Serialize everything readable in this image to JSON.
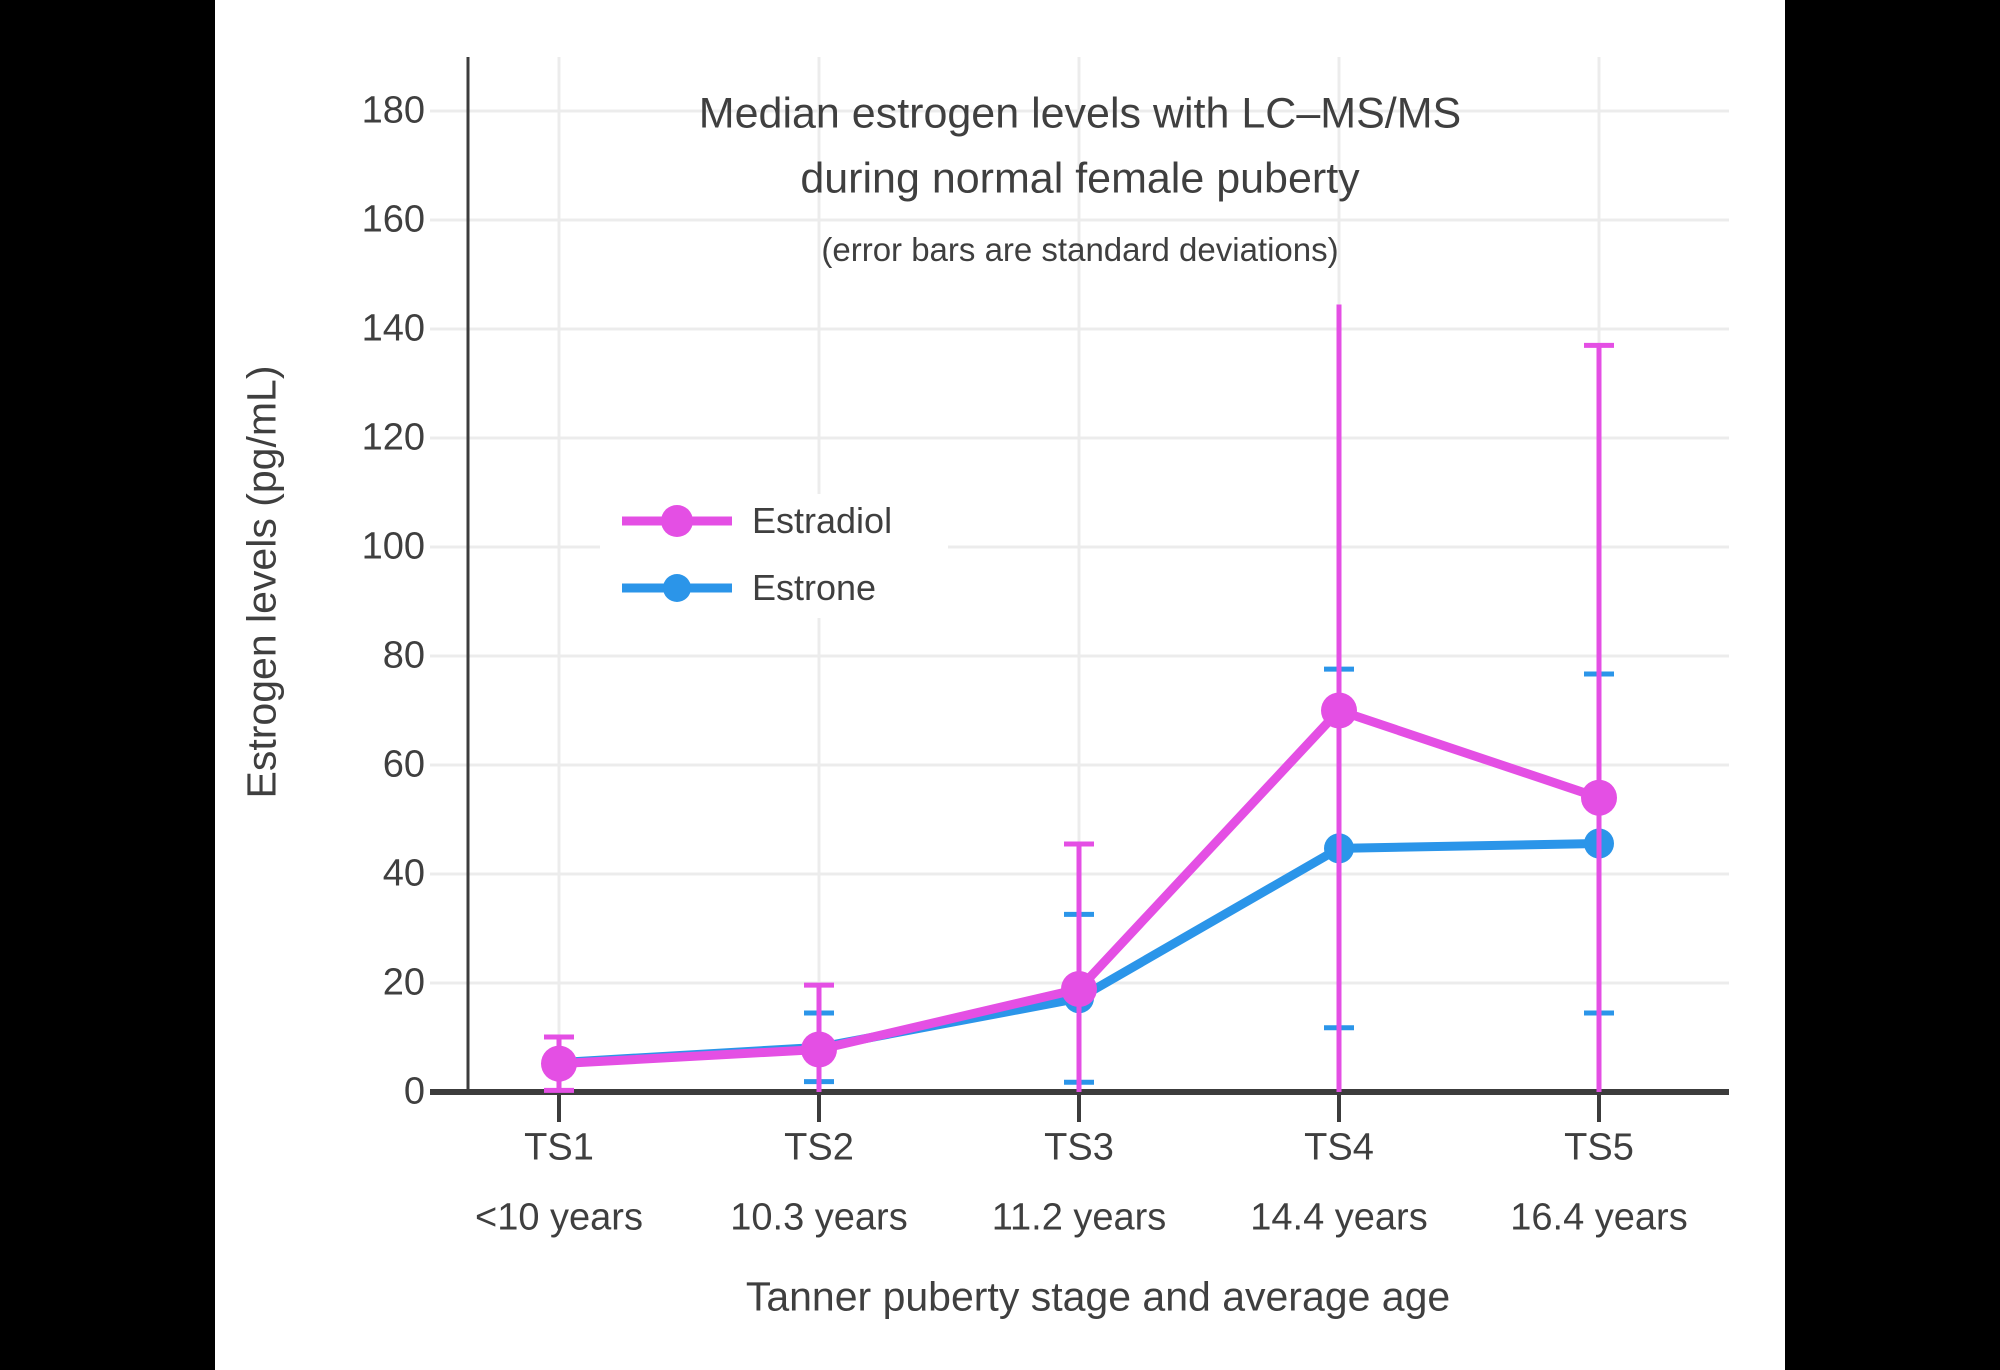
{
  "chart_data": {
    "type": "line",
    "title_line1": "Median estrogen levels with LC–MS/MS",
    "title_line2": "during normal female puberty",
    "subtitle": "(error bars are standard deviations)",
    "xlabel": "Tanner puberty stage and average age",
    "ylabel": "Estrogen levels (pg/mL)",
    "categories": [
      "TS1",
      "TS2",
      "TS3",
      "TS4",
      "TS5"
    ],
    "category_ages": [
      "<10 years",
      "10.3 years",
      "11.2 years",
      "14.4 years",
      "16.4 years"
    ],
    "yticks": [
      0,
      20,
      40,
      60,
      80,
      100,
      120,
      140,
      160,
      180
    ],
    "ylim": [
      0,
      190
    ],
    "grid": true,
    "legend_position": "inside-upper-left",
    "units": "pg/mL",
    "series": [
      {
        "name": "Estradiol",
        "color": "#e44fe4",
        "values": [
          5.2,
          7.8,
          18.9,
          70,
          54
        ],
        "sd": [
          4.9,
          11.8,
          26.6,
          74.5,
          83
        ],
        "top_cap": [
          true,
          true,
          true,
          false,
          true
        ]
      },
      {
        "name": "Estrone",
        "color": "#2b95e9",
        "values": [
          5.4,
          8.2,
          17.2,
          44.7,
          45.6
        ],
        "sd": [
          null,
          6.3,
          15.4,
          32.9,
          31.1
        ],
        "top_cap": [
          true,
          true,
          true,
          true,
          true
        ]
      }
    ]
  },
  "colors": {
    "background": "#000000",
    "panel": "#ffffff",
    "text": "#3f3f3f",
    "grid": "#ececec",
    "axis": "#3c3c3c"
  }
}
